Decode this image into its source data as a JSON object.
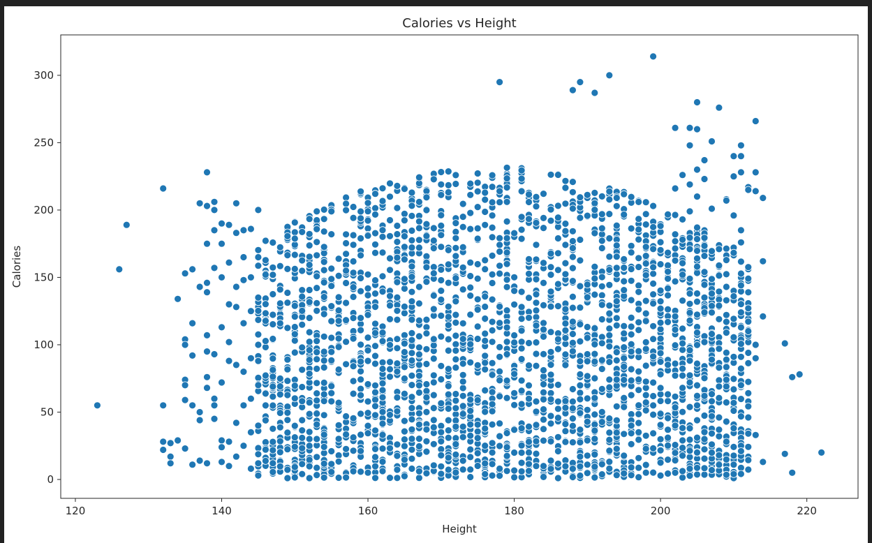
{
  "colors": {
    "marker": "#1f77b4",
    "marker_edge": "#ffffff",
    "axes": "#262626",
    "background": "#ffffff",
    "window": "#222222"
  },
  "chart_data": {
    "type": "scatter",
    "title": "Calories vs Height",
    "xlabel": "Height",
    "ylabel": "Calories",
    "xlim": [
      118,
      227
    ],
    "ylim": [
      -14,
      330
    ],
    "xticks": [
      120,
      140,
      160,
      180,
      200,
      220
    ],
    "yticks": [
      0,
      50,
      100,
      150,
      200,
      250,
      300
    ],
    "grid": false,
    "legend": "none",
    "dense_region": {
      "x_range": [
        145,
        212
      ],
      "y_range": [
        1,
        230
      ],
      "density_peak_x": 177
    },
    "points": [
      [
        123,
        55
      ],
      [
        126,
        156
      ],
      [
        127,
        189
      ],
      [
        132,
        216
      ],
      [
        132,
        55
      ],
      [
        132,
        28
      ],
      [
        132,
        22
      ],
      [
        133,
        27
      ],
      [
        133,
        17
      ],
      [
        133,
        12
      ],
      [
        134,
        29
      ],
      [
        134,
        134
      ],
      [
        135,
        23
      ],
      [
        135,
        104
      ],
      [
        135,
        100
      ],
      [
        135,
        74
      ],
      [
        135,
        70
      ],
      [
        135,
        59
      ],
      [
        135,
        153
      ],
      [
        136,
        156
      ],
      [
        136,
        116
      ],
      [
        136,
        92
      ],
      [
        136,
        55
      ],
      [
        136,
        11
      ],
      [
        137,
        205
      ],
      [
        137,
        143
      ],
      [
        137,
        50
      ],
      [
        137,
        44
      ],
      [
        137,
        14
      ],
      [
        138,
        228
      ],
      [
        138,
        203
      ],
      [
        138,
        175
      ],
      [
        138,
        146
      ],
      [
        138,
        139
      ],
      [
        138,
        107
      ],
      [
        138,
        95
      ],
      [
        138,
        76
      ],
      [
        138,
        68
      ],
      [
        138,
        12
      ],
      [
        139,
        206
      ],
      [
        139,
        200
      ],
      [
        139,
        185
      ],
      [
        139,
        157
      ],
      [
        139,
        93
      ],
      [
        139,
        60
      ],
      [
        139,
        55
      ],
      [
        139,
        45
      ],
      [
        140,
        190
      ],
      [
        140,
        175
      ],
      [
        140,
        150
      ],
      [
        140,
        113
      ],
      [
        140,
        72
      ],
      [
        140,
        29
      ],
      [
        140,
        24
      ],
      [
        140,
        13
      ],
      [
        141,
        189
      ],
      [
        141,
        161
      ],
      [
        141,
        130
      ],
      [
        141,
        102
      ],
      [
        141,
        88
      ],
      [
        141,
        28
      ],
      [
        141,
        10
      ],
      [
        142,
        205
      ],
      [
        142,
        183
      ],
      [
        142,
        143
      ],
      [
        142,
        128
      ],
      [
        142,
        85
      ],
      [
        142,
        42
      ],
      [
        142,
        17
      ],
      [
        143,
        185
      ],
      [
        143,
        165
      ],
      [
        143,
        148
      ],
      [
        143,
        116
      ],
      [
        143,
        80
      ],
      [
        143,
        55
      ],
      [
        143,
        25
      ],
      [
        144,
        186
      ],
      [
        144,
        150
      ],
      [
        144,
        125
      ],
      [
        144,
        90
      ],
      [
        144,
        60
      ],
      [
        144,
        35
      ],
      [
        144,
        8
      ],
      [
        145,
        200
      ],
      [
        145,
        165
      ],
      [
        145,
        135
      ],
      [
        145,
        100
      ],
      [
        145,
        70
      ],
      [
        145,
        40
      ],
      [
        145,
        12
      ],
      [
        217,
        101
      ],
      [
        217,
        19
      ],
      [
        218,
        76
      ],
      [
        218,
        5
      ],
      [
        219,
        78
      ],
      [
        222,
        20
      ],
      [
        214,
        209
      ],
      [
        214,
        162
      ],
      [
        214,
        121
      ],
      [
        214,
        13
      ],
      [
        213,
        266
      ],
      [
        213,
        228
      ],
      [
        213,
        214
      ],
      [
        213,
        100
      ],
      [
        213,
        90
      ],
      [
        213,
        33
      ],
      [
        212,
        217
      ],
      [
        212,
        215
      ],
      [
        212,
        127
      ],
      [
        212,
        94
      ],
      [
        212,
        64
      ],
      [
        212,
        34
      ],
      [
        211,
        248
      ],
      [
        211,
        240
      ],
      [
        211,
        228
      ],
      [
        211,
        185
      ],
      [
        211,
        176
      ],
      [
        211,
        124
      ],
      [
        211,
        91
      ],
      [
        211,
        70
      ],
      [
        211,
        25
      ],
      [
        211,
        21
      ],
      [
        210,
        240
      ],
      [
        210,
        225
      ],
      [
        210,
        196
      ],
      [
        210,
        140
      ],
      [
        210,
        136
      ],
      [
        210,
        91
      ],
      [
        210,
        51
      ],
      [
        210,
        38
      ],
      [
        210,
        11
      ],
      [
        210,
        4
      ],
      [
        209,
        208
      ],
      [
        209,
        207
      ],
      [
        209,
        143
      ],
      [
        209,
        133
      ],
      [
        209,
        117
      ],
      [
        209,
        89
      ],
      [
        209,
        74
      ],
      [
        209,
        43
      ],
      [
        209,
        28
      ],
      [
        208,
        276
      ],
      [
        208,
        171
      ],
      [
        208,
        129
      ],
      [
        208,
        119
      ],
      [
        208,
        97
      ],
      [
        208,
        69
      ],
      [
        208,
        18
      ],
      [
        207,
        251
      ],
      [
        207,
        201
      ],
      [
        207,
        138
      ],
      [
        207,
        108
      ],
      [
        207,
        89
      ],
      [
        207,
        47
      ],
      [
        207,
        26
      ],
      [
        207,
        7
      ],
      [
        206,
        237
      ],
      [
        206,
        223
      ],
      [
        206,
        166
      ],
      [
        206,
        154
      ],
      [
        206,
        124
      ],
      [
        206,
        102
      ],
      [
        206,
        62
      ],
      [
        206,
        30
      ],
      [
        205,
        280
      ],
      [
        205,
        260
      ],
      [
        205,
        230
      ],
      [
        205,
        210
      ],
      [
        205,
        187
      ],
      [
        205,
        158
      ],
      [
        205,
        132
      ],
      [
        205,
        109
      ],
      [
        205,
        86
      ],
      [
        205,
        55
      ],
      [
        205,
        20
      ],
      [
        204,
        261
      ],
      [
        204,
        248
      ],
      [
        204,
        219
      ],
      [
        204,
        199
      ],
      [
        204,
        171
      ],
      [
        204,
        138
      ],
      [
        204,
        118
      ],
      [
        204,
        96
      ],
      [
        204,
        72
      ],
      [
        204,
        38
      ],
      [
        204,
        8
      ],
      [
        199,
        314
      ],
      [
        193,
        300
      ],
      [
        189,
        295
      ],
      [
        188,
        289
      ],
      [
        191,
        287
      ],
      [
        178,
        295
      ],
      [
        203,
        226
      ],
      [
        203,
        193
      ],
      [
        203,
        152
      ],
      [
        203,
        101
      ],
      [
        203,
        68
      ],
      [
        203,
        29
      ],
      [
        202,
        261
      ],
      [
        202,
        216
      ],
      [
        202,
        182
      ],
      [
        202,
        147
      ],
      [
        202,
        121
      ],
      [
        202,
        86
      ],
      [
        202,
        40
      ],
      [
        202,
        5
      ]
    ]
  }
}
